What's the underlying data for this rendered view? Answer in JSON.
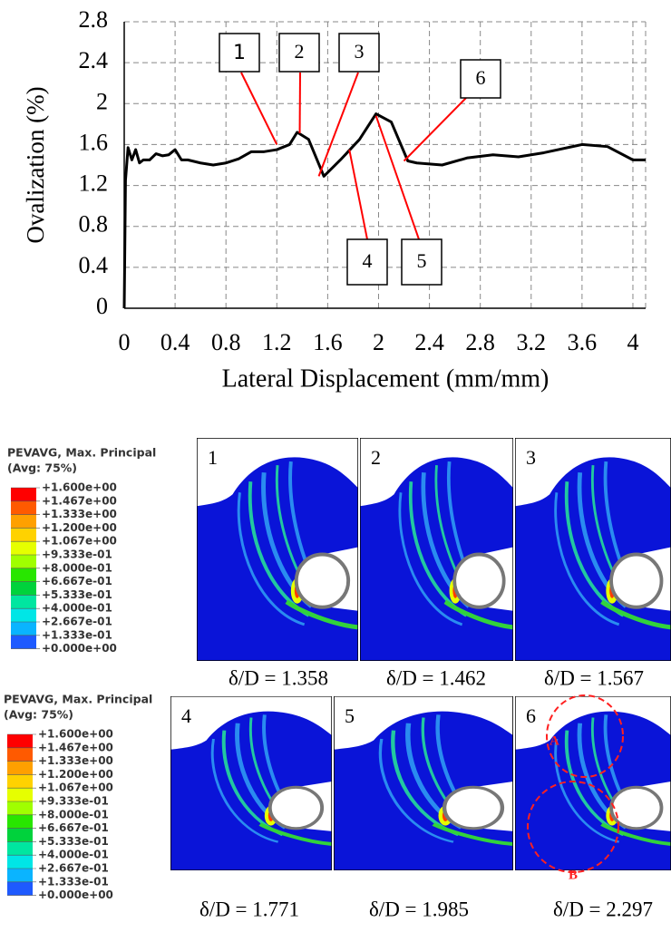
{
  "chart_data": {
    "type": "line",
    "xlabel": "Lateral Displacement (mm/mm)",
    "ylabel": "Ovalization (%)",
    "x": [
      0,
      0.01,
      0.03,
      0.06,
      0.09,
      0.12,
      0.15,
      0.2,
      0.25,
      0.3,
      0.35,
      0.4,
      0.45,
      0.5,
      0.6,
      0.7,
      0.8,
      0.9,
      1.0,
      1.1,
      1.2,
      1.3,
      1.36,
      1.45,
      1.57,
      1.7,
      1.85,
      1.98,
      2.1,
      2.23,
      2.3,
      2.5,
      2.7,
      2.9,
      3.1,
      3.3,
      3.6,
      3.8,
      4.0,
      4.1
    ],
    "series": [
      {
        "color": "#000000",
        "values": [
          0,
          1.25,
          1.57,
          1.45,
          1.55,
          1.42,
          1.45,
          1.45,
          1.51,
          1.49,
          1.5,
          1.55,
          1.45,
          1.45,
          1.42,
          1.4,
          1.42,
          1.46,
          1.53,
          1.53,
          1.55,
          1.6,
          1.72,
          1.65,
          1.29,
          1.45,
          1.65,
          1.9,
          1.82,
          1.44,
          1.42,
          1.4,
          1.47,
          1.5,
          1.48,
          1.52,
          1.6,
          1.58,
          1.45,
          1.45
        ]
      }
    ],
    "xlim": [
      0,
      4.1
    ],
    "ylim": [
      0,
      2.8
    ],
    "xticks": [
      0,
      0.4,
      0.8,
      1.2,
      1.6,
      2,
      2.4,
      2.8,
      3.2,
      3.6,
      4
    ],
    "yticks": [
      0,
      0.4,
      0.8,
      1.2,
      1.6,
      2,
      2.4,
      2.8
    ],
    "grid": true,
    "annotations": [
      {
        "text": "1",
        "x": 1.2,
        "y": 1.6
      },
      {
        "text": "2",
        "x": 1.38,
        "y": 1.71
      },
      {
        "text": "3",
        "x": 1.53,
        "y": 1.29
      },
      {
        "text": "4",
        "x": 1.77,
        "y": 1.55
      },
      {
        "text": "5",
        "x": 1.98,
        "y": 1.88
      },
      {
        "text": "6",
        "x": 2.2,
        "y": 1.44
      }
    ]
  },
  "figure": {
    "legends": [
      {
        "title": "PEVAVG, Max. Principal",
        "subtitle": "(Avg: 75%)",
        "labels": [
          "+1.600e+00",
          "+1.467e+00",
          "+1.333e+00",
          "+1.200e+00",
          "+1.067e+00",
          "+9.333e-01",
          "+8.000e-01",
          "+6.667e-01",
          "+5.333e-01",
          "+4.000e-01",
          "+2.667e-01",
          "+1.333e-01",
          "+0.000e+00"
        ]
      },
      {
        "title": "PEVAVG, Max. Principal",
        "subtitle": "(Avg: 75%)",
        "labels": [
          "+1.600e+00",
          "+1.467e+00",
          "+1.333e+00",
          "+1.200e+00",
          "+1.067e+00",
          "+9.333e-01",
          "+8.000e-01",
          "+6.667e-01",
          "+5.333e-01",
          "+4.000e-01",
          "+2.667e-01",
          "+1.333e-01",
          "+0.000e+00"
        ]
      }
    ],
    "panels": [
      {
        "label": "1",
        "caption": "δ/D = 1.358"
      },
      {
        "label": "2",
        "caption": "δ/D = 1.462"
      },
      {
        "label": "3",
        "caption": "δ/D = 1.567"
      },
      {
        "label": "4",
        "caption": "δ/D = 1.771"
      },
      {
        "label": "5",
        "caption": "δ/D = 1.985"
      },
      {
        "label": "6",
        "caption": "δ/D = 2.297"
      }
    ],
    "callouts": [
      "A",
      "B"
    ]
  }
}
